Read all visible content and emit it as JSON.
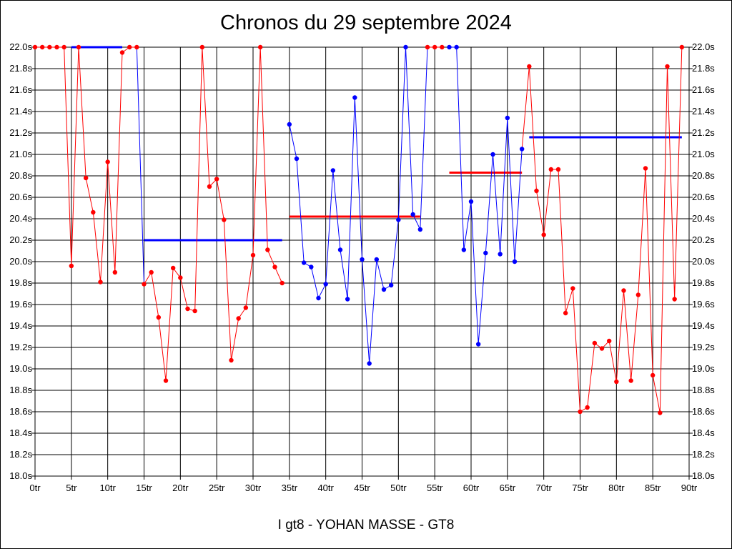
{
  "title": "Chronos du 29 septembre 2024",
  "footer": "I gt8 - YOHAN MASSE - GT8",
  "chart_data": {
    "type": "line",
    "x_unit": "tr",
    "y_unit": "s",
    "xlim": [
      0,
      90
    ],
    "ylim": [
      18.0,
      22.0
    ],
    "x_ticks": [
      0,
      5,
      10,
      15,
      20,
      25,
      30,
      35,
      40,
      45,
      50,
      55,
      60,
      65,
      70,
      75,
      80,
      85,
      90
    ],
    "y_ticks": [
      18.0,
      18.2,
      18.4,
      18.6,
      18.8,
      19.0,
      19.2,
      19.4,
      19.6,
      19.8,
      20.0,
      20.2,
      20.4,
      20.6,
      20.8,
      21.0,
      21.2,
      21.4,
      21.6,
      21.8,
      22.0
    ],
    "x_tick_labels": [
      "0tr",
      "5tr",
      "10tr",
      "15tr",
      "20tr",
      "25tr",
      "30tr",
      "35tr",
      "40tr",
      "45tr",
      "50tr",
      "55tr",
      "60tr",
      "65tr",
      "70tr",
      "75tr",
      "80tr",
      "85tr",
      "90tr"
    ],
    "y_tick_labels": [
      "18.0s",
      "18.2s",
      "18.4s",
      "18.6s",
      "18.8s",
      "19.0s",
      "19.2s",
      "19.4s",
      "19.6s",
      "19.8s",
      "20.0s",
      "20.2s",
      "20.4s",
      "20.6s",
      "20.8s",
      "21.0s",
      "21.2s",
      "21.4s",
      "21.6s",
      "21.8s",
      "22.0s"
    ],
    "grid": true,
    "series": [
      {
        "color": "#ff0000",
        "x": [
          0,
          1,
          2,
          3,
          4,
          5,
          6,
          7,
          8,
          9,
          10,
          11,
          12,
          13,
          14
        ],
        "y": [
          22.0,
          22.0,
          22.0,
          22.0,
          22.0,
          19.96,
          22.0,
          20.78,
          20.46,
          19.81,
          20.93,
          19.9,
          21.95,
          22.0,
          22.0
        ]
      },
      {
        "color": "#ff0000",
        "x": [
          15,
          16,
          17,
          18,
          19,
          20,
          21,
          22,
          23,
          24,
          25,
          26,
          27,
          28,
          29,
          30,
          31,
          32,
          33,
          34
        ],
        "y": [
          19.79,
          19.9,
          19.48,
          18.89,
          19.94,
          19.85,
          19.56,
          19.54,
          22.0,
          20.7,
          20.77,
          20.39,
          19.08,
          19.47,
          19.57,
          20.06,
          22.0,
          20.11,
          19.95,
          19.8
        ]
      },
      {
        "color": "#0000ff",
        "x": [
          35,
          36,
          37,
          38,
          39,
          40,
          41,
          42,
          43,
          44,
          45,
          46,
          47,
          48,
          49,
          50,
          51,
          52,
          53
        ],
        "y": [
          21.28,
          20.96,
          19.99,
          19.95,
          19.66,
          19.79,
          20.85,
          20.11,
          19.65,
          21.53,
          20.02,
          19.05,
          20.02,
          19.74,
          19.78,
          20.39,
          22.0,
          20.44,
          20.3
        ]
      },
      {
        "color": "#ff0000",
        "x": [
          54,
          55,
          56
        ],
        "y": [
          22.0,
          22.0,
          22.0
        ]
      },
      {
        "color": "#0000ff",
        "x": [
          57,
          58,
          59,
          60,
          61,
          62,
          63,
          64,
          65,
          66,
          67
        ],
        "y": [
          22.0,
          22.0,
          20.11,
          20.56,
          19.23,
          20.08,
          21.0,
          20.07,
          21.34,
          20.0,
          21.05
        ]
      },
      {
        "color": "#ff0000",
        "x": [
          68,
          69,
          70,
          71,
          72,
          73,
          74,
          75,
          76,
          77,
          78,
          79,
          80,
          81,
          82,
          83,
          84,
          85,
          86,
          87,
          88,
          89
        ],
        "y": [
          21.82,
          20.66,
          20.25,
          20.86,
          20.86,
          19.52,
          19.75,
          18.6,
          18.64,
          19.24,
          19.19,
          19.26,
          18.88,
          19.73,
          18.89,
          19.69,
          20.87,
          18.94,
          18.59,
          21.82,
          19.65,
          22.0
        ]
      }
    ],
    "connectors": [
      {
        "color": "#0000ff",
        "x": [
          14,
          15
        ],
        "y": [
          22.0,
          19.79
        ]
      },
      {
        "color": "#0000ff",
        "x": [
          53,
          54
        ],
        "y": [
          20.3,
          22.0
        ]
      },
      {
        "color": "#ff0000",
        "x": [
          67,
          68
        ],
        "y": [
          21.05,
          21.82
        ]
      }
    ],
    "average_lines": [
      {
        "color": "#0000ff",
        "x": [
          5,
          12
        ],
        "y": 22.0
      },
      {
        "color": "#0000ff",
        "x": [
          15,
          34
        ],
        "y": 20.2
      },
      {
        "color": "#ff0000",
        "x": [
          35,
          53
        ],
        "y": 20.42
      },
      {
        "color": "#ff0000",
        "x": [
          57,
          67
        ],
        "y": 20.83
      },
      {
        "color": "#0000ff",
        "x": [
          68,
          89
        ],
        "y": 21.16
      }
    ]
  }
}
